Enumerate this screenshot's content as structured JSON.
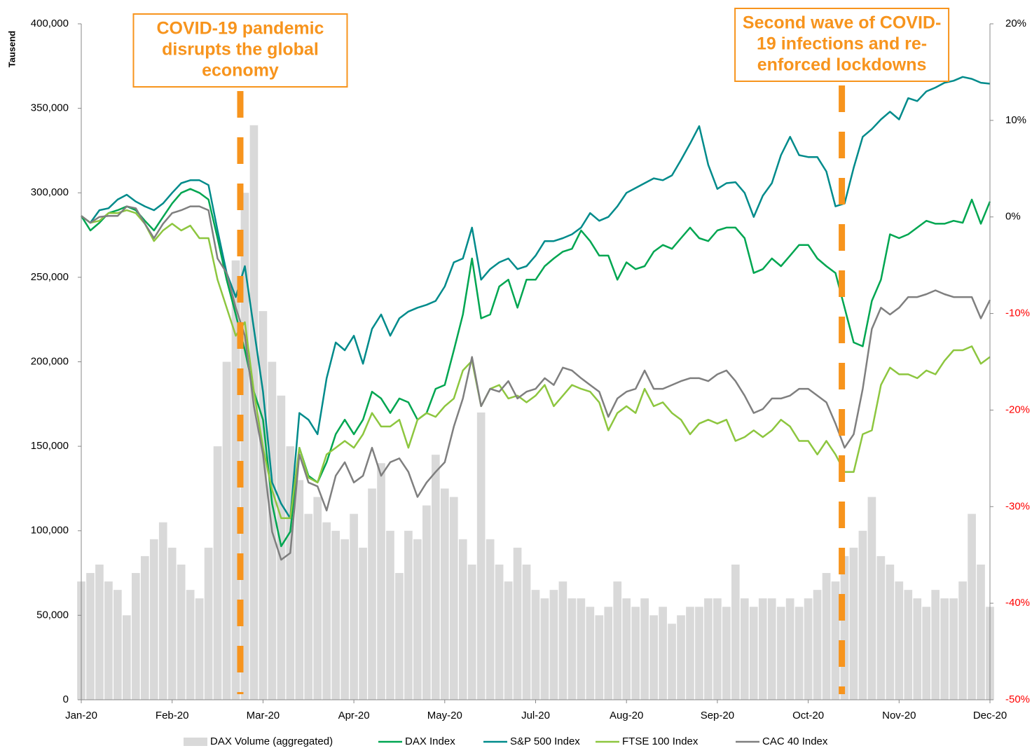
{
  "chart_data": {
    "type": "line",
    "y_label": "Tausend",
    "x": [
      0,
      0.1,
      0.2,
      0.3,
      0.4,
      0.5,
      0.6,
      0.7,
      0.8,
      0.9,
      1,
      1.1,
      1.2,
      1.3,
      1.4,
      1.5,
      1.6,
      1.7,
      1.8,
      1.9,
      2,
      2.1,
      2.2,
      2.3,
      2.4,
      2.5,
      2.6,
      2.7,
      2.8,
      2.9,
      3,
      3.1,
      3.2,
      3.3,
      3.4,
      3.5,
      3.6,
      3.7,
      3.8,
      3.9,
      4,
      4.1,
      4.2,
      4.3,
      4.4,
      4.5,
      4.6,
      4.7,
      4.8,
      4.9,
      5,
      5.1,
      5.2,
      5.3,
      5.4,
      5.5,
      5.6,
      5.7,
      5.8,
      5.9,
      6,
      6.1,
      6.2,
      6.3,
      6.4,
      6.5,
      6.6,
      6.7,
      6.8,
      6.9,
      7,
      7.1,
      7.2,
      7.3,
      7.4,
      7.5,
      7.6,
      7.7,
      7.8,
      7.9,
      8,
      8.1,
      8.2,
      8.3,
      8.4,
      8.5,
      8.6,
      8.7,
      8.8,
      8.9,
      9,
      9.1,
      9.2,
      9.3,
      9.4,
      9.5,
      9.6,
      9.7,
      9.8,
      9.9,
      10
    ],
    "xlim": [
      0,
      10
    ],
    "xticks": [
      {
        "value": 0,
        "label": "Jan-20"
      },
      {
        "value": 1,
        "label": "Feb-20"
      },
      {
        "value": 2,
        "label": "Mar-20"
      },
      {
        "value": 3,
        "label": "Apr-20"
      },
      {
        "value": 4,
        "label": "May-20"
      },
      {
        "value": 5,
        "label": "Jul-20"
      },
      {
        "value": 6,
        "label": "Aug-20"
      },
      {
        "value": 7,
        "label": "Sep-20"
      },
      {
        "value": 8,
        "label": "Oct-20"
      },
      {
        "value": 9,
        "label": "Nov-20"
      },
      {
        "value": 10,
        "label": "Dec-20"
      }
    ],
    "ylim": [
      0,
      400000
    ],
    "yticks": [
      0,
      {
        "value": 50000,
        "label": "50,000"
      },
      {
        "value": 100000,
        "label": "100,000"
      },
      {
        "value": 150000,
        "label": "150,000"
      },
      {
        "value": 200000,
        "label": "200,000"
      },
      {
        "value": 250000,
        "label": "250,000"
      },
      {
        "value": 300000,
        "label": "300,000"
      },
      {
        "value": 350000,
        "label": "350,000"
      },
      {
        "value": 400000,
        "label": "400,000"
      }
    ],
    "y2lim": [
      -50,
      20
    ],
    "y2ticks": [
      {
        "value": -50,
        "label": "-50%"
      },
      {
        "value": -40,
        "label": "-40%"
      },
      {
        "value": -30,
        "label": "-30%"
      },
      {
        "value": -20,
        "label": "-20%"
      },
      {
        "value": -10,
        "label": "-10%"
      },
      {
        "value": 0,
        "label": "0%"
      },
      {
        "value": 10,
        "label": "10%"
      },
      {
        "value": 20,
        "label": "20%"
      }
    ],
    "y2_negative_label_color": "#ff0000",
    "legend": "bottom",
    "series": [
      {
        "name": "DAX Volume (aggregated)",
        "type": "bar",
        "color": "#d9d9d9",
        "values": [
          70000,
          75000,
          80000,
          70000,
          65000,
          50000,
          75000,
          85000,
          95000,
          105000,
          90000,
          80000,
          65000,
          60000,
          90000,
          150000,
          200000,
          260000,
          300000,
          340000,
          230000,
          200000,
          180000,
          150000,
          130000,
          110000,
          120000,
          105000,
          100000,
          95000,
          110000,
          90000,
          125000,
          140000,
          100000,
          75000,
          100000,
          95000,
          115000,
          145000,
          125000,
          120000,
          95000,
          80000,
          170000,
          95000,
          80000,
          70000,
          90000,
          80000,
          65000,
          60000,
          65000,
          70000,
          60000,
          60000,
          55000,
          50000,
          55000,
          70000,
          60000,
          55000,
          60000,
          50000,
          55000,
          45000,
          50000,
          55000,
          55000,
          60000,
          60000,
          55000,
          80000,
          60000,
          55000,
          60000,
          60000,
          55000,
          60000,
          55000,
          60000,
          65000,
          75000,
          70000,
          85000,
          90000,
          100000,
          120000,
          85000,
          80000,
          70000,
          65000,
          60000,
          55000,
          65000,
          60000,
          60000,
          70000,
          110000,
          80000,
          55000
        ]
      },
      {
        "name": "DAX Index",
        "axis": "y2",
        "color": "#00a651",
        "values": [
          0.1,
          -1.4,
          -0.6,
          0.4,
          0.7,
          1.1,
          0.7,
          -0.4,
          -1.4,
          0.0,
          1.4,
          2.5,
          2.9,
          2.5,
          1.8,
          -2.2,
          -6.5,
          -10.1,
          -13.8,
          -18.1,
          -21.0,
          -29.7,
          -34.1,
          -32.6,
          -23.9,
          -26.8,
          -27.5,
          -25.4,
          -22.5,
          -21.0,
          -22.5,
          -21.0,
          -18.1,
          -18.8,
          -20.3,
          -18.8,
          -19.2,
          -21.0,
          -20.3,
          -17.8,
          -17.4,
          -13.8,
          -10.1,
          -4.3,
          -10.5,
          -10.1,
          -7.2,
          -6.5,
          -9.4,
          -6.5,
          -6.5,
          -5.1,
          -4.3,
          -3.6,
          -3.3,
          -1.4,
          -2.5,
          -4.0,
          -4.0,
          -6.5,
          -4.7,
          -5.4,
          -5.1,
          -3.6,
          -2.9,
          -3.3,
          -2.2,
          -1.1,
          -2.2,
          -2.5,
          -1.4,
          -1.1,
          -1.1,
          -2.2,
          -5.8,
          -5.4,
          -4.3,
          -5.1,
          -4.0,
          -2.9,
          -2.9,
          -4.3,
          -5.1,
          -5.8,
          -9.4,
          -13.0,
          -13.4,
          -8.7,
          -6.5,
          -1.8,
          -2.2,
          -1.8,
          -1.1,
          -0.4,
          -0.7,
          -0.7,
          -0.4,
          -0.6,
          1.8,
          -0.7,
          1.6
        ]
      },
      {
        "name": "S&P 500 Index",
        "axis": "y2",
        "color": "#008b8b",
        "values": [
          0.1,
          -0.6,
          0.7,
          0.9,
          1.8,
          2.3,
          1.6,
          1.1,
          0.7,
          1.4,
          2.5,
          3.5,
          3.8,
          3.8,
          3.3,
          -1.4,
          -5.8,
          -8.3,
          -5.1,
          -11.6,
          -18.1,
          -27.5,
          -29.7,
          -31.2,
          -20.3,
          -21.0,
          -22.5,
          -16.7,
          -13.0,
          -13.8,
          -12.3,
          -15.2,
          -11.6,
          -10.1,
          -12.3,
          -10.5,
          -9.8,
          -9.4,
          -9.1,
          -8.7,
          -7.2,
          -4.7,
          -4.3,
          -1.1,
          -6.5,
          -5.4,
          -4.7,
          -4.3,
          -5.4,
          -5.1,
          -4.0,
          -2.5,
          -2.5,
          -2.2,
          -1.8,
          -1.1,
          0.4,
          -0.4,
          0.0,
          1.1,
          2.5,
          3.0,
          3.5,
          4.0,
          3.8,
          4.3,
          5.9,
          7.6,
          9.4,
          5.4,
          2.9,
          3.5,
          3.6,
          2.5,
          0.0,
          2.2,
          3.5,
          6.4,
          8.3,
          6.4,
          6.2,
          6.2,
          4.7,
          1.1,
          1.4,
          5.1,
          8.3,
          9.1,
          10.1,
          10.9,
          10.1,
          12.3,
          12.0,
          13.0,
          13.4,
          13.9,
          14.1,
          14.5,
          14.3,
          13.9,
          13.8
        ]
      },
      {
        "name": "FTSE 100 Index",
        "axis": "y2",
        "color": "#8dc63f",
        "values": [
          0.1,
          -0.6,
          -0.4,
          0.4,
          0.4,
          0.7,
          0.4,
          -0.7,
          -2.5,
          -1.4,
          -0.7,
          -1.4,
          -0.9,
          -2.2,
          -2.2,
          -6.5,
          -9.4,
          -12.3,
          -10.9,
          -18.1,
          -23.9,
          -28.3,
          -31.2,
          -31.2,
          -23.9,
          -27.0,
          -27.5,
          -24.6,
          -23.9,
          -23.2,
          -23.9,
          -22.5,
          -20.3,
          -21.7,
          -21.7,
          -21.0,
          -23.9,
          -21.0,
          -20.3,
          -20.7,
          -19.6,
          -18.8,
          -15.9,
          -14.9,
          -19.6,
          -17.8,
          -17.4,
          -18.8,
          -18.5,
          -19.2,
          -18.5,
          -17.4,
          -19.6,
          -18.5,
          -17.4,
          -17.8,
          -18.1,
          -19.2,
          -22.1,
          -20.3,
          -19.6,
          -20.3,
          -17.8,
          -19.6,
          -19.2,
          -20.3,
          -21.0,
          -22.5,
          -21.4,
          -21.0,
          -21.4,
          -21.0,
          -23.2,
          -22.8,
          -22.1,
          -22.8,
          -22.1,
          -21.0,
          -21.7,
          -23.2,
          -23.2,
          -24.6,
          -23.2,
          -24.6,
          -26.4,
          -26.4,
          -22.5,
          -22.1,
          -17.4,
          -15.6,
          -16.3,
          -16.3,
          -16.7,
          -15.9,
          -16.3,
          -14.9,
          -13.8,
          -13.8,
          -13.4,
          -15.2,
          -14.5
        ]
      },
      {
        "name": "CAC 40 Index",
        "axis": "y2",
        "color": "#7f7f7f",
        "values": [
          0.1,
          -0.6,
          0.0,
          0.1,
          0.1,
          1.1,
          0.9,
          -0.7,
          -2.2,
          -0.7,
          0.4,
          0.7,
          1.1,
          1.1,
          0.7,
          -4.3,
          -5.8,
          -9.4,
          -12.3,
          -19.6,
          -24.6,
          -32.6,
          -35.5,
          -34.8,
          -24.6,
          -27.5,
          -27.9,
          -30.4,
          -26.8,
          -25.4,
          -27.5,
          -26.8,
          -23.9,
          -26.8,
          -25.4,
          -25.0,
          -26.4,
          -29.0,
          -27.5,
          -26.4,
          -25.4,
          -21.7,
          -18.8,
          -14.5,
          -19.6,
          -17.8,
          -18.1,
          -17.0,
          -18.8,
          -18.1,
          -17.8,
          -16.7,
          -17.4,
          -15.6,
          -15.9,
          -16.7,
          -17.4,
          -18.1,
          -20.7,
          -18.8,
          -18.1,
          -17.8,
          -15.9,
          -17.8,
          -17.8,
          -17.4,
          -17.0,
          -16.7,
          -16.7,
          -17.0,
          -16.3,
          -15.9,
          -17.0,
          -18.5,
          -20.3,
          -19.9,
          -18.8,
          -18.8,
          -18.5,
          -17.8,
          -17.8,
          -18.5,
          -19.2,
          -21.4,
          -23.9,
          -22.5,
          -17.8,
          -11.6,
          -9.4,
          -10.1,
          -9.4,
          -8.3,
          -8.3,
          -8.0,
          -7.6,
          -8.0,
          -8.3,
          -8.3,
          -8.3,
          -10.5,
          -8.6
        ]
      }
    ],
    "annotations": [
      {
        "x": 1.75,
        "color": "#f7941d",
        "lines": [
          "COVID-19 pandemic",
          "disrupts the global",
          "economy"
        ]
      },
      {
        "x": 8.37,
        "color": "#f7941d",
        "lines": [
          "Second wave of COVID-",
          "19 infections and re-",
          "enforced lockdowns"
        ]
      }
    ]
  }
}
